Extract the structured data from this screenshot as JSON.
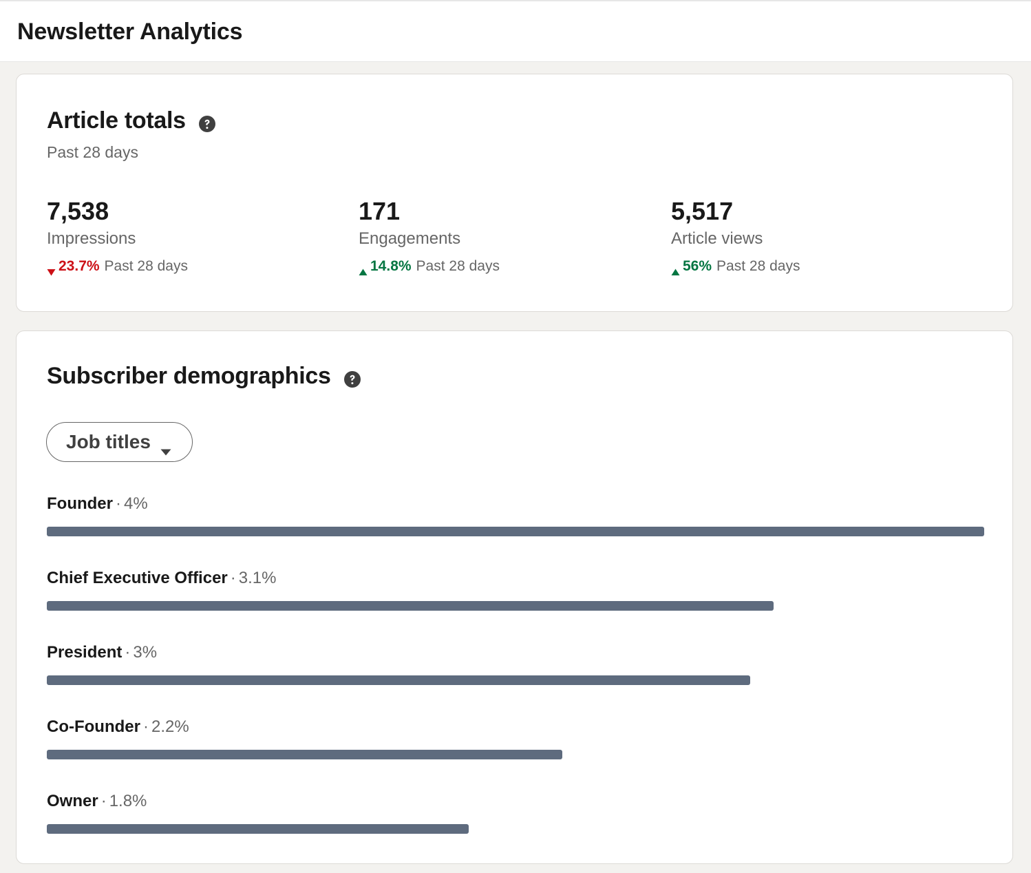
{
  "header": {
    "title": "Newsletter Analytics"
  },
  "totals": {
    "title": "Article totals",
    "help_icon": "question-circle-icon",
    "subtitle": "Past 28 days",
    "metrics": [
      {
        "value": "7,538",
        "label": "Impressions",
        "trend": "down",
        "change": "23.7%",
        "period": "Past 28 days"
      },
      {
        "value": "171",
        "label": "Engagements",
        "trend": "up",
        "change": "14.8%",
        "period": "Past 28 days"
      },
      {
        "value": "5,517",
        "label": "Article views",
        "trend": "up",
        "change": "56%",
        "period": "Past 28 days"
      }
    ]
  },
  "demographics": {
    "title": "Subscriber demographics",
    "help_icon": "question-circle-icon",
    "filter": {
      "selected": "Job titles",
      "icon": "caret-down-icon"
    },
    "separator": "·",
    "rows": [
      {
        "title": "Founder",
        "percent": "4%",
        "value": 4.0
      },
      {
        "title": "Chief Executive Officer",
        "percent": "3.1%",
        "value": 3.1
      },
      {
        "title": "President",
        "percent": "3%",
        "value": 3.0
      },
      {
        "title": "Co-Founder",
        "percent": "2.2%",
        "value": 2.2
      },
      {
        "title": "Owner",
        "percent": "1.8%",
        "value": 1.8
      }
    ]
  },
  "colors": {
    "bar": "#5e6b7e",
    "up": "#057642",
    "down": "#cc1016",
    "background": "#f3f2ef"
  }
}
